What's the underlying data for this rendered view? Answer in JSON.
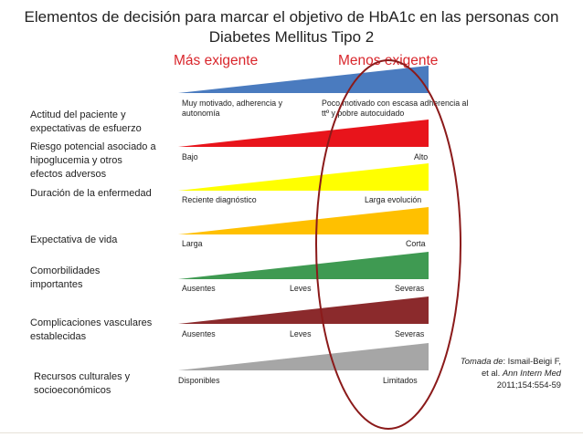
{
  "title": {
    "line1": "Elementos de decisión para marcar el objetivo de HbA1c en las personas con",
    "line2": "Diabetes Mellitus Tipo 2"
  },
  "headers": {
    "left": "Más exigente",
    "right": "Menos exigente"
  },
  "rows": [
    {
      "label_lines": [
        "Actitud del paciente y",
        "expectativas de esfuerzo"
      ],
      "color": "#4a7bbf",
      "left_lines": [
        "Muy  motivado, adherencia y",
        "autonomía"
      ],
      "right_lines": [
        "Poco motivado con escasa adherencia al",
        "ttº y pobre autocuidado"
      ]
    },
    {
      "label_lines": [
        "Riesgo potencial asociado a",
        "hipoglucemia y otros",
        "efectos adversos"
      ],
      "color": "#e8141b",
      "left": "Bajo",
      "right": "Alto"
    },
    {
      "label_lines": [
        "Duración de la enfermedad"
      ],
      "color": "#ffff00",
      "left": "Reciente diagnóstico",
      "right": "Larga evolución"
    },
    {
      "label_lines": [
        "Expectativa de vida"
      ],
      "color": "#ffc000",
      "left": "Larga",
      "right": "Corta"
    },
    {
      "label_lines": [
        "Comorbilidades",
        "importantes"
      ],
      "color": "#3f9a52",
      "left": "Ausentes",
      "middle": "Leves",
      "right": "Severas"
    },
    {
      "label_lines": [
        "Complicaciones vasculares",
        "establecidas"
      ],
      "color": "#8b2a2c",
      "left": "Ausentes",
      "middle": "Leves",
      "right": "Severas"
    },
    {
      "label_lines": [
        "Recursos  culturales y",
        "socioeconómicos"
      ],
      "color": "#a6a6a6",
      "left": "Disponibles",
      "right": "Limitados"
    }
  ],
  "citation": {
    "prefix": "Tomada de",
    "line1_rest": ": Ismail-Beigi F,",
    "line2_pre": "et al. ",
    "journal": "Ann Intern Med",
    "line3": "2011;154:554-59"
  },
  "colors": {
    "header_red": "#d9262c",
    "ellipse": "#8b1a1a"
  }
}
